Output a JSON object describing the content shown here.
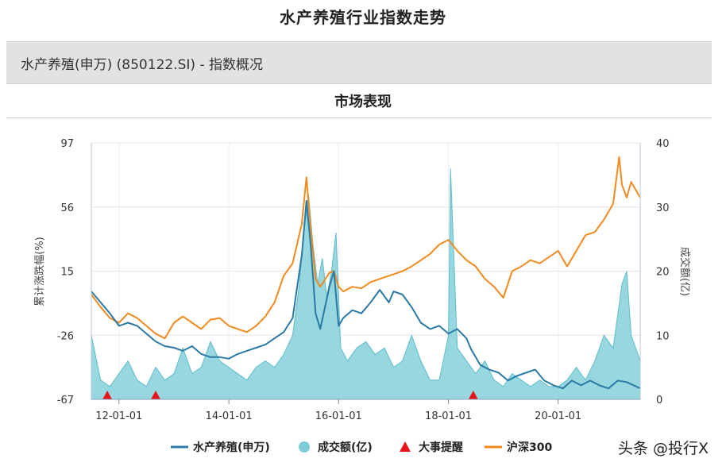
{
  "page": {
    "title": "水产养殖行业指数走势",
    "header": "水产养殖(申万) (850122.SI) - 指数概况",
    "section_title": "市场表现",
    "watermark": "头条 @投行X"
  },
  "chart_data": {
    "type": "line",
    "x_tick_labels": [
      "12-01-01",
      "14-01-01",
      "16-01-01",
      "18-01-01",
      "20-01-01"
    ],
    "x_tick_dates": [
      "2012-01-01",
      "2014-01-01",
      "2016-01-01",
      "2018-01-01",
      "2020-01-01"
    ],
    "xlim": [
      "2011-07-01",
      "2021-06-30"
    ],
    "ylim_left": [
      -67,
      97
    ],
    "yticks_left": [
      "97",
      "56",
      "15",
      "-26",
      "-67"
    ],
    "ylim_right": [
      0,
      40
    ],
    "yticks_right": [
      "40",
      "30",
      "20",
      "10",
      "0"
    ],
    "ylabel_left": "累计涨跌幅(%)",
    "ylabel_right": "成交额(亿)",
    "grid": true,
    "legend_position": "bottom",
    "colors": {
      "aquaculture": "#2a7aa5",
      "volume": "#7dcdd8",
      "events": "#e8131b",
      "hs300": "#f28a1e"
    },
    "legend": [
      {
        "key": "aquaculture",
        "label": "水产养殖(申万)",
        "symbol": "line"
      },
      {
        "key": "volume",
        "label": "成交额(亿)",
        "symbol": "circle"
      },
      {
        "key": "events",
        "label": "大事提醒",
        "symbol": "triangle"
      },
      {
        "key": "hs300",
        "label": "沪深300",
        "symbol": "line"
      }
    ],
    "series": [
      {
        "name": "水产养殖(申万)",
        "key": "aquaculture",
        "axis": "left",
        "x": [
          "2011-07-01",
          "2011-09-01",
          "2011-11-01",
          "2012-01-01",
          "2012-03-01",
          "2012-05-01",
          "2012-07-01",
          "2012-09-01",
          "2012-11-01",
          "2013-01-01",
          "2013-03-01",
          "2013-05-01",
          "2013-07-01",
          "2013-09-01",
          "2013-11-01",
          "2014-01-01",
          "2014-03-01",
          "2014-05-01",
          "2014-07-01",
          "2014-09-01",
          "2014-11-01",
          "2015-01-01",
          "2015-03-01",
          "2015-05-01",
          "2015-06-01",
          "2015-07-01",
          "2015-08-01",
          "2015-09-01",
          "2015-11-01",
          "2015-12-01",
          "2016-01-01",
          "2016-02-01",
          "2016-04-01",
          "2016-06-01",
          "2016-08-01",
          "2016-10-01",
          "2016-12-01",
          "2017-01-01",
          "2017-03-01",
          "2017-05-01",
          "2017-07-01",
          "2017-09-01",
          "2017-11-01",
          "2018-01-01",
          "2018-03-01",
          "2018-05-01",
          "2018-06-01",
          "2018-08-01",
          "2018-10-01",
          "2018-12-01",
          "2019-02-01",
          "2019-04-01",
          "2019-06-01",
          "2019-08-01",
          "2019-10-01",
          "2019-12-01",
          "2020-02-01",
          "2020-04-01",
          "2020-06-01",
          "2020-08-01",
          "2020-10-01",
          "2020-12-01",
          "2021-02-01",
          "2021-04-01",
          "2021-06-30"
        ],
        "values": [
          2,
          -5,
          -12,
          -20,
          -18,
          -20,
          -25,
          -30,
          -33,
          -34,
          -36,
          -33,
          -38,
          -40,
          -40,
          -41,
          -38,
          -36,
          -34,
          -32,
          -28,
          -24,
          -15,
          25,
          60,
          30,
          -12,
          -22,
          5,
          15,
          -20,
          -15,
          -10,
          -12,
          -5,
          3,
          -5,
          2,
          0,
          -8,
          -18,
          -22,
          -20,
          -25,
          -22,
          -28,
          -35,
          -45,
          -48,
          -50,
          -55,
          -52,
          -50,
          -48,
          -55,
          -58,
          -60,
          -55,
          -58,
          -55,
          -58,
          -60,
          -55,
          -56,
          -60
        ]
      },
      {
        "name": "沪深300",
        "key": "hs300",
        "axis": "left",
        "x": [
          "2011-07-01",
          "2011-09-01",
          "2011-11-01",
          "2012-01-01",
          "2012-03-01",
          "2012-05-01",
          "2012-07-01",
          "2012-09-01",
          "2012-11-01",
          "2013-01-01",
          "2013-03-01",
          "2013-05-01",
          "2013-07-01",
          "2013-09-01",
          "2013-11-01",
          "2014-01-01",
          "2014-03-01",
          "2014-05-01",
          "2014-07-01",
          "2014-09-01",
          "2014-11-01",
          "2015-01-01",
          "2015-03-01",
          "2015-05-01",
          "2015-06-01",
          "2015-07-01",
          "2015-08-01",
          "2015-09-01",
          "2015-11-01",
          "2015-12-01",
          "2016-01-01",
          "2016-02-01",
          "2016-04-01",
          "2016-06-01",
          "2016-08-01",
          "2016-10-01",
          "2016-12-01",
          "2017-01-01",
          "2017-03-01",
          "2017-05-01",
          "2017-07-01",
          "2017-09-01",
          "2017-11-01",
          "2018-01-01",
          "2018-03-01",
          "2018-05-01",
          "2018-07-01",
          "2018-09-01",
          "2018-11-01",
          "2019-01-01",
          "2019-03-01",
          "2019-05-01",
          "2019-07-01",
          "2019-09-01",
          "2019-11-01",
          "2020-01-01",
          "2020-03-01",
          "2020-05-01",
          "2020-07-01",
          "2020-09-01",
          "2020-11-01",
          "2021-01-01",
          "2021-02-10",
          "2021-03-01",
          "2021-04-01",
          "2021-05-01",
          "2021-06-30"
        ],
        "values": [
          0,
          -8,
          -15,
          -18,
          -12,
          -15,
          -20,
          -25,
          -28,
          -18,
          -14,
          -18,
          -22,
          -16,
          -15,
          -20,
          -22,
          -24,
          -20,
          -14,
          -5,
          12,
          20,
          45,
          75,
          40,
          10,
          5,
          14,
          15,
          5,
          2,
          5,
          4,
          8,
          10,
          12,
          13,
          15,
          18,
          22,
          26,
          32,
          35,
          28,
          22,
          18,
          10,
          5,
          -2,
          15,
          18,
          22,
          20,
          24,
          28,
          18,
          28,
          38,
          40,
          48,
          58,
          88,
          70,
          62,
          72,
          62
        ]
      },
      {
        "name": "成交额(亿)",
        "key": "volume",
        "axis": "right",
        "type": "area",
        "x": [
          "2011-07-01",
          "2011-09-01",
          "2011-11-01",
          "2012-01-01",
          "2012-03-01",
          "2012-05-01",
          "2012-07-01",
          "2012-09-01",
          "2012-11-01",
          "2013-01-01",
          "2013-03-01",
          "2013-05-01",
          "2013-07-01",
          "2013-09-01",
          "2013-11-01",
          "2014-01-01",
          "2014-03-01",
          "2014-05-01",
          "2014-07-01",
          "2014-09-01",
          "2014-11-01",
          "2015-01-01",
          "2015-03-01",
          "2015-04-15",
          "2015-05-15",
          "2015-06-15",
          "2015-07-15",
          "2015-08-15",
          "2015-09-15",
          "2015-10-15",
          "2015-11-15",
          "2015-12-15",
          "2016-01-15",
          "2016-03-01",
          "2016-05-01",
          "2016-07-01",
          "2016-09-01",
          "2016-11-01",
          "2017-01-01",
          "2017-03-01",
          "2017-05-01",
          "2017-07-01",
          "2017-09-01",
          "2017-11-01",
          "2018-01-01",
          "2018-01-15",
          "2018-03-01",
          "2018-05-01",
          "2018-07-01",
          "2018-09-01",
          "2018-11-01",
          "2019-01-01",
          "2019-03-01",
          "2019-05-01",
          "2019-07-01",
          "2019-09-01",
          "2019-11-01",
          "2020-01-01",
          "2020-03-01",
          "2020-05-01",
          "2020-07-01",
          "2020-09-01",
          "2020-11-01",
          "2021-01-01",
          "2021-03-01",
          "2021-04-01",
          "2021-05-01",
          "2021-06-30"
        ],
        "values": [
          10,
          3,
          2,
          4,
          6,
          3,
          2,
          5,
          3,
          4,
          8,
          4,
          5,
          9,
          6,
          5,
          4,
          3,
          5,
          6,
          5,
          7,
          10,
          18,
          26,
          32,
          24,
          18,
          22,
          16,
          20,
          26,
          8,
          6,
          8,
          9,
          7,
          8,
          5,
          6,
          10,
          6,
          3,
          3,
          10,
          36,
          8,
          6,
          4,
          6,
          3,
          2,
          4,
          3,
          2,
          3,
          2,
          2,
          3,
          5,
          3,
          6,
          10,
          8,
          18,
          20,
          10,
          6
        ]
      },
      {
        "name": "大事提醒",
        "key": "events",
        "axis": "left",
        "type": "markers",
        "x": [
          "2011-10-15",
          "2012-09-01",
          "2018-06-15"
        ],
        "values": [
          -67,
          -67,
          -67
        ]
      }
    ]
  }
}
